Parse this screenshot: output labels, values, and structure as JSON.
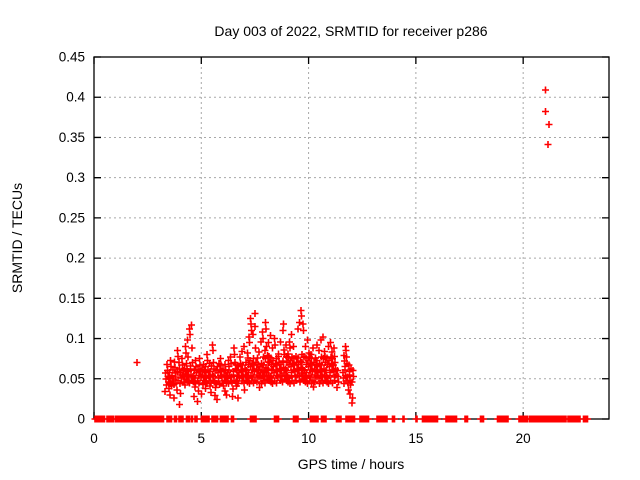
{
  "chart_data": {
    "type": "scatter",
    "title": "Day 003 of 2022, SRMTID for receiver p286",
    "xlabel": "GPS time / hours",
    "ylabel": "SRMTID / TECUs",
    "xlim": [
      0,
      24
    ],
    "ylim": [
      0,
      0.45
    ],
    "x_ticks": [
      0,
      5,
      10,
      15,
      20
    ],
    "x_tick_labels": [
      "0",
      "5",
      "10",
      "15",
      "20"
    ],
    "y_ticks": [
      0,
      0.05,
      0.1,
      0.15,
      0.2,
      0.25,
      0.3,
      0.35,
      0.4,
      0.45
    ],
    "y_tick_labels": [
      "0",
      "0.05",
      "0.1",
      "0.15",
      "0.2",
      "0.25",
      "0.3",
      "0.35",
      "0.4",
      "0.45"
    ],
    "grid": true,
    "legend": false,
    "marker_shape": "plus",
    "marker_color": "#ff0000",
    "grid_color": "#a8a8a8",
    "axis_color": "#000000",
    "scatter_points": {
      "isolated": [
        [
          2.0,
          0.07
        ]
      ],
      "high_outliers": [
        [
          21.05,
          0.409
        ],
        [
          21.05,
          0.382
        ],
        [
          21.2,
          0.366
        ],
        [
          21.15,
          0.341
        ]
      ],
      "columns": [
        [
          3.35,
          [
            0.042,
            0.05,
            0.057,
            0.034
          ]
        ],
        [
          3.45,
          [
            0.046,
            0.053,
            0.06,
            0.068,
            0.038
          ]
        ],
        [
          3.55,
          [
            0.044,
            0.051,
            0.058,
            0.065,
            0.073,
            0.03
          ]
        ],
        [
          3.65,
          [
            0.047,
            0.054,
            0.041,
            0.061
          ]
        ],
        [
          3.75,
          [
            0.043,
            0.05,
            0.057,
            0.064,
            0.071,
            0.026
          ]
        ],
        [
          3.85,
          [
            0.045,
            0.052,
            0.059,
            0.036
          ]
        ],
        [
          3.95,
          [
            0.048,
            0.055,
            0.062,
            0.07,
            0.078,
            0.085,
            0.018
          ]
        ],
        [
          4.05,
          [
            0.044,
            0.051,
            0.058,
            0.032
          ]
        ],
        [
          4.15,
          [
            0.046,
            0.053,
            0.06,
            0.067,
            0.075
          ]
        ],
        [
          4.25,
          [
            0.049,
            0.056,
            0.042,
            0.063,
            0.082,
            0.09
          ]
        ],
        [
          4.35,
          [
            0.047,
            0.054,
            0.061,
            0.069,
            0.077,
            0.098
          ]
        ],
        [
          4.45,
          [
            0.045,
            0.052,
            0.059,
            0.066,
            0.105,
            0.112
          ]
        ],
        [
          4.55,
          [
            0.048,
            0.055,
            0.062,
            0.07,
            0.088,
            0.117
          ]
        ],
        [
          4.65,
          [
            0.046,
            0.053,
            0.04,
            0.06,
            0.028
          ]
        ],
        [
          4.75,
          [
            0.044,
            0.051,
            0.058,
            0.065,
            0.073
          ]
        ],
        [
          4.85,
          [
            0.047,
            0.054,
            0.035,
            0.061,
            0.022
          ]
        ],
        [
          4.95,
          [
            0.045,
            0.052,
            0.059,
            0.067,
            0.075
          ]
        ],
        [
          5.05,
          [
            0.048,
            0.043,
            0.055,
            0.062,
            0.031
          ]
        ],
        [
          5.15,
          [
            0.046,
            0.053,
            0.06,
            0.068,
            0.038
          ]
        ],
        [
          5.25,
          [
            0.044,
            0.051,
            0.058,
            0.065,
            0.073,
            0.08
          ]
        ],
        [
          5.35,
          [
            0.047,
            0.054,
            0.061,
            0.041,
            0.069
          ]
        ],
        [
          5.45,
          [
            0.045,
            0.052,
            0.059,
            0.066,
            0.033
          ]
        ],
        [
          5.55,
          [
            0.048,
            0.055,
            0.062,
            0.07,
            0.085,
            0.092
          ]
        ],
        [
          5.65,
          [
            0.046,
            0.053,
            0.06,
            0.039,
            0.029
          ]
        ],
        [
          5.75,
          [
            0.044,
            0.051,
            0.058,
            0.065,
            0.024
          ]
        ],
        [
          5.85,
          [
            0.047,
            0.054,
            0.061,
            0.043,
            0.069
          ]
        ],
        [
          5.95,
          [
            0.045,
            0.052,
            0.059,
            0.067,
            0.075
          ]
        ],
        [
          6.05,
          [
            0.048,
            0.055,
            0.041,
            0.062,
            0.035
          ]
        ],
        [
          6.15,
          [
            0.046,
            0.053,
            0.06,
            0.068,
            0.03
          ]
        ],
        [
          6.25,
          [
            0.044,
            0.051,
            0.058,
            0.065,
            0.073
          ]
        ],
        [
          6.35,
          [
            0.047,
            0.054,
            0.061,
            0.069,
            0.077
          ]
        ],
        [
          6.45,
          [
            0.045,
            0.052,
            0.059,
            0.037,
            0.028
          ]
        ],
        [
          6.55,
          [
            0.048,
            0.055,
            0.062,
            0.07,
            0.08,
            0.088
          ]
        ],
        [
          6.65,
          [
            0.046,
            0.053,
            0.06,
            0.041,
            0.067
          ]
        ],
        [
          6.75,
          [
            0.044,
            0.051,
            0.058,
            0.065,
            0.026
          ]
        ],
        [
          6.85,
          [
            0.047,
            0.054,
            0.061,
            0.069,
            0.077,
            0.084
          ]
        ],
        [
          6.95,
          [
            0.045,
            0.052,
            0.059,
            0.067,
            0.09
          ]
        ],
        [
          7.05,
          [
            0.048,
            0.055,
            0.062,
            0.036,
            0.07
          ]
        ],
        [
          7.15,
          [
            0.046,
            0.053,
            0.06,
            0.068,
            0.076,
            0.082
          ]
        ],
        [
          7.25,
          [
            0.044,
            0.051,
            0.058,
            0.065,
            0.073,
            0.095,
            0.102
          ]
        ],
        [
          7.35,
          [
            0.047,
            0.054,
            0.061,
            0.069,
            0.11,
            0.118,
            0.125
          ]
        ],
        [
          7.45,
          [
            0.045,
            0.052,
            0.059,
            0.067,
            0.075,
            0.105,
            0.131
          ]
        ],
        [
          7.55,
          [
            0.048,
            0.055,
            0.062,
            0.07,
            0.088,
            0.115
          ]
        ],
        [
          7.65,
          [
            0.046,
            0.053,
            0.06,
            0.068,
            0.076,
            0.083
          ]
        ],
        [
          7.75,
          [
            0.044,
            0.051,
            0.058,
            0.065,
            0.039,
            0.096
          ]
        ],
        [
          7.85,
          [
            0.047,
            0.054,
            0.061,
            0.069,
            0.077,
            0.1,
            0.108
          ]
        ],
        [
          7.95,
          [
            0.045,
            0.052,
            0.059,
            0.067,
            0.075,
            0.085
          ]
        ],
        [
          8.05,
          [
            0.05,
            0.057,
            0.064,
            0.071,
            0.079,
            0.09,
            0.112,
            0.12
          ]
        ],
        [
          8.15,
          [
            0.048,
            0.055,
            0.062,
            0.07,
            0.078,
            0.095
          ]
        ],
        [
          8.25,
          [
            0.046,
            0.053,
            0.06,
            0.068,
            0.076,
            0.104
          ]
        ],
        [
          8.35,
          [
            0.044,
            0.051,
            0.058,
            0.065,
            0.073,
            0.088
          ]
        ],
        [
          8.45,
          [
            0.047,
            0.054,
            0.061,
            0.069,
            0.092,
            0.1
          ]
        ],
        [
          8.55,
          [
            0.045,
            0.052,
            0.059,
            0.067,
            0.075,
            0.081
          ]
        ],
        [
          8.65,
          [
            0.048,
            0.055,
            0.062,
            0.07,
            0.078,
            0.096
          ]
        ],
        [
          8.75,
          [
            0.046,
            0.053,
            0.06,
            0.068,
            0.11
          ]
        ],
        [
          8.85,
          [
            0.05,
            0.057,
            0.064,
            0.072,
            0.08,
            0.086,
            0.118
          ]
        ],
        [
          8.95,
          [
            0.048,
            0.055,
            0.062,
            0.07,
            0.078,
            0.092
          ]
        ],
        [
          9.05,
          [
            0.046,
            0.053,
            0.06,
            0.068,
            0.076,
            0.081
          ]
        ],
        [
          9.15,
          [
            0.044,
            0.051,
            0.058,
            0.065,
            0.073,
            0.088,
            0.096
          ]
        ],
        [
          9.25,
          [
            0.047,
            0.054,
            0.061,
            0.069,
            0.077,
            0.105
          ]
        ],
        [
          9.35,
          [
            0.045,
            0.052,
            0.059,
            0.067,
            0.075,
            0.09
          ]
        ],
        [
          9.45,
          [
            0.048,
            0.055,
            0.062,
            0.07,
            0.078,
            0.112
          ]
        ],
        [
          9.55,
          [
            0.046,
            0.053,
            0.06,
            0.068,
            0.076,
            0.12
          ]
        ],
        [
          9.65,
          [
            0.05,
            0.057,
            0.064,
            0.072,
            0.08,
            0.128,
            0.135
          ]
        ],
        [
          9.75,
          [
            0.048,
            0.055,
            0.062,
            0.07,
            0.078,
            0.11,
            0.118
          ]
        ],
        [
          9.85,
          [
            0.046,
            0.053,
            0.06,
            0.068,
            0.076,
            0.09
          ]
        ],
        [
          9.95,
          [
            0.044,
            0.051,
            0.058,
            0.065,
            0.073,
            0.098
          ]
        ],
        [
          10.05,
          [
            0.047,
            0.054,
            0.061,
            0.069,
            0.077,
            0.082
          ]
        ],
        [
          10.15,
          [
            0.045,
            0.052,
            0.059,
            0.067,
            0.075,
            0.08
          ]
        ],
        [
          10.25,
          [
            0.048,
            0.055,
            0.062,
            0.07,
            0.04,
            0.088
          ]
        ],
        [
          10.35,
          [
            0.046,
            0.053,
            0.06,
            0.068,
            0.076,
            0.092
          ]
        ],
        [
          10.45,
          [
            0.044,
            0.051,
            0.058,
            0.065,
            0.073,
            0.085
          ]
        ],
        [
          10.55,
          [
            0.047,
            0.054,
            0.061,
            0.069,
            0.077,
            0.098
          ]
        ],
        [
          10.65,
          [
            0.045,
            0.052,
            0.059,
            0.067,
            0.075,
            0.102
          ]
        ],
        [
          10.75,
          [
            0.048,
            0.055,
            0.062,
            0.07,
            0.078,
            0.084
          ]
        ],
        [
          10.85,
          [
            0.046,
            0.053,
            0.06,
            0.068,
            0.076
          ]
        ],
        [
          10.95,
          [
            0.044,
            0.051,
            0.058,
            0.065,
            0.073,
            0.09
          ]
        ],
        [
          11.05,
          [
            0.047,
            0.054,
            0.061,
            0.069,
            0.077,
            0.095
          ]
        ],
        [
          11.15,
          [
            0.045,
            0.052,
            0.059,
            0.067,
            0.075,
            0.083,
            0.088
          ]
        ],
        [
          11.25,
          [
            0.048,
            0.055,
            0.062,
            0.07,
            0.078
          ]
        ],
        [
          11.35,
          [
            0.046,
            0.053,
            0.06,
            0.039
          ]
        ],
        [
          11.65,
          [
            0.044,
            0.051,
            0.058,
            0.065,
            0.072,
            0.079
          ]
        ],
        [
          11.75,
          [
            0.047,
            0.054,
            0.061,
            0.069,
            0.077,
            0.085,
            0.09
          ]
        ],
        [
          11.85,
          [
            0.045,
            0.052,
            0.059,
            0.067,
            0.036
          ]
        ],
        [
          11.95,
          [
            0.048,
            0.055,
            0.062,
            0.042,
            0.031
          ]
        ],
        [
          12.05,
          [
            0.046,
            0.053,
            0.06,
            0.026,
            0.02
          ]
        ]
      ],
      "zero_line_segments": [
        [
          0.05,
          0.5
        ],
        [
          0.6,
          0.9
        ],
        [
          1.0,
          3.25
        ],
        [
          3.4,
          3.6
        ],
        [
          3.75,
          3.85
        ],
        [
          3.95,
          4.15
        ],
        [
          4.3,
          4.45
        ],
        [
          4.55,
          4.62
        ],
        [
          4.7,
          4.8
        ],
        [
          5.0,
          5.35
        ],
        [
          5.5,
          5.75
        ],
        [
          5.9,
          6.25
        ],
        [
          6.4,
          6.5
        ],
        [
          7.3,
          7.55
        ],
        [
          8.4,
          8.6
        ],
        [
          9.3,
          9.5
        ],
        [
          10.1,
          10.45
        ],
        [
          10.6,
          10.8
        ],
        [
          11.3,
          11.5
        ],
        [
          11.75,
          12.15
        ],
        [
          12.4,
          12.8
        ],
        [
          13.2,
          13.65
        ],
        [
          13.9,
          14.0
        ],
        [
          14.4,
          14.45
        ],
        [
          15.0,
          15.05
        ],
        [
          15.3,
          16.0
        ],
        [
          16.4,
          16.9
        ],
        [
          17.3,
          17.4
        ],
        [
          18.0,
          18.15
        ],
        [
          18.8,
          19.3
        ],
        [
          19.8,
          20.2
        ],
        [
          20.3,
          22.0
        ],
        [
          22.1,
          22.65
        ],
        [
          22.8,
          23.0
        ]
      ],
      "zero_line_step": 0.05
    }
  }
}
